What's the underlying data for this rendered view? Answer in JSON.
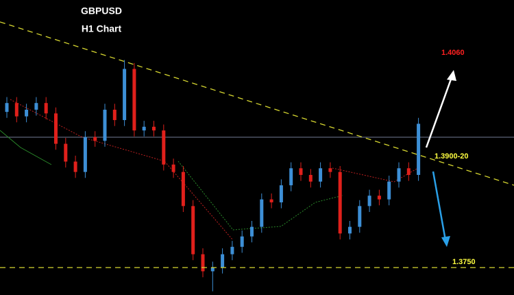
{
  "chart_data": {
    "type": "candlestick",
    "title": "GBPUSD",
    "subtitle": "H1 Chart",
    "ylim": [
      1.3713,
      1.4111
    ],
    "up_color": "#3d8fd6",
    "down_color": "#e0201b",
    "open": [
      1.396,
      1.3972,
      1.3954,
      1.3963,
      1.3972,
      1.3958,
      1.3917,
      1.3893,
      1.3879,
      1.3926,
      1.3921,
      1.3963,
      1.3949,
      1.4018,
      1.3935,
      1.394,
      1.3935,
      1.3889,
      1.3879,
      1.3833,
      1.3768,
      1.3745,
      1.375,
      1.3768,
      1.3778,
      1.3792,
      1.3805,
      1.3842,
      1.3838,
      1.3861,
      1.3884,
      1.3875,
      1.3866,
      1.3884,
      1.3879,
      1.3796,
      1.3805,
      1.3833,
      1.3847,
      1.3842,
      1.3866,
      1.3884,
      1.3875
    ],
    "high": [
      1.398,
      1.398,
      1.3971,
      1.398,
      1.398,
      1.3966,
      1.3925,
      1.3901,
      1.3934,
      1.3934,
      1.3971,
      1.3971,
      1.403,
      1.4026,
      1.3948,
      1.3948,
      1.3943,
      1.3897,
      1.3887,
      1.3841,
      1.3776,
      1.3758,
      1.3776,
      1.3786,
      1.38,
      1.3813,
      1.385,
      1.385,
      1.3869,
      1.3892,
      1.3892,
      1.3883,
      1.3892,
      1.3892,
      1.3887,
      1.3813,
      1.3841,
      1.3855,
      1.3855,
      1.3874,
      1.3892,
      1.3892,
      1.3952
    ],
    "low": [
      1.3952,
      1.3946,
      1.3946,
      1.3955,
      1.395,
      1.3909,
      1.3885,
      1.3871,
      1.3871,
      1.3913,
      1.3913,
      1.3941,
      1.3941,
      1.3927,
      1.3927,
      1.3927,
      1.3881,
      1.3871,
      1.3825,
      1.376,
      1.3737,
      1.3718,
      1.3742,
      1.376,
      1.377,
      1.3784,
      1.3797,
      1.383,
      1.383,
      1.3853,
      1.3867,
      1.3858,
      1.3858,
      1.3871,
      1.3788,
      1.3788,
      1.3797,
      1.3825,
      1.3834,
      1.3834,
      1.3858,
      1.3867,
      1.3867
    ],
    "close": [
      1.3972,
      1.3954,
      1.3963,
      1.3972,
      1.3958,
      1.3917,
      1.3893,
      1.3879,
      1.3926,
      1.3921,
      1.3963,
      1.3949,
      1.4018,
      1.3935,
      1.394,
      1.3935,
      1.3889,
      1.3879,
      1.3833,
      1.3768,
      1.3745,
      1.375,
      1.3768,
      1.3778,
      1.3792,
      1.3805,
      1.3842,
      1.3838,
      1.3861,
      1.3884,
      1.3875,
      1.3866,
      1.3884,
      1.3879,
      1.3796,
      1.3805,
      1.3833,
      1.3847,
      1.3842,
      1.3866,
      1.3884,
      1.3875,
      1.3944
    ],
    "target_up": {
      "value": 1.406,
      "label": "1.4060",
      "color": "#ff2020"
    },
    "resistance": {
      "value": 1.39,
      "label": "1.3900-20",
      "color": "#ffff40"
    },
    "target_down": {
      "value": 1.375,
      "label": "1.3750",
      "color": "#ffff40"
    }
  }
}
